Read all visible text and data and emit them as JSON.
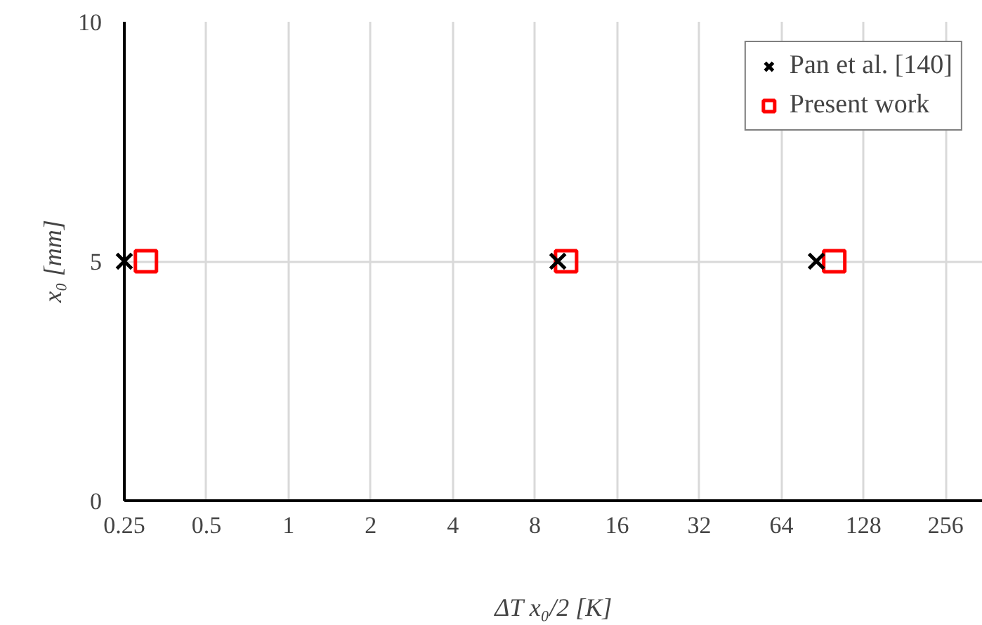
{
  "chart_data": {
    "type": "scatter",
    "xlabel": "ΔT x₀/2 [K]",
    "ylabel": "x₀ [mm]",
    "series": [
      {
        "name": "Pan et al. [140]",
        "color": "#000000",
        "marker": "cross",
        "x": [
          0.25,
          9.7,
          86
        ],
        "values": [
          5,
          5,
          5
        ]
      },
      {
        "name": "Present work",
        "color": "#ff0000",
        "marker": "square",
        "x": [
          0.3,
          10.4,
          100
        ],
        "values": [
          5,
          5,
          5
        ]
      }
    ],
    "log": "x",
    "xlim": [
      0.25,
      350
    ],
    "xticks": [
      0.25,
      0.5,
      1,
      2,
      4,
      8,
      16,
      32,
      64,
      128,
      256
    ],
    "ylim": [
      0,
      10
    ],
    "yticks": [
      0,
      5,
      10
    ],
    "grid": true,
    "legend": "top right"
  }
}
